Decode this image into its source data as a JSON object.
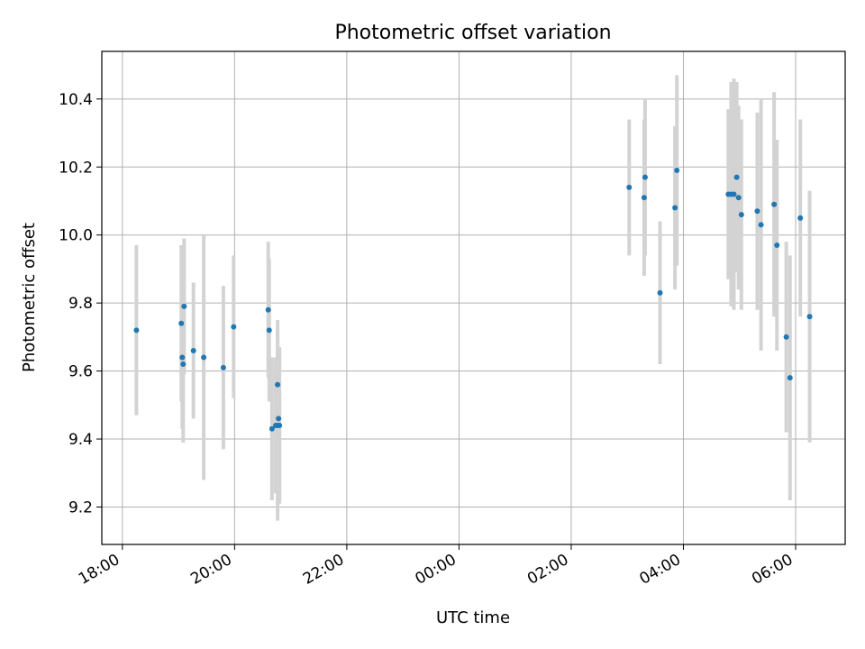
{
  "chart_data": {
    "type": "scatter",
    "title": "Photometric offset variation",
    "xlabel": "UTC time",
    "ylabel": "Photometric offset",
    "x_axis": "time",
    "x_ticks": [
      "18:00",
      "20:00",
      "22:00",
      "00:00",
      "02:00",
      "04:00",
      "06:00"
    ],
    "xlim": [
      "17:38",
      "06:53"
    ],
    "y_ticks": [
      "9.2",
      "9.4",
      "9.6",
      "9.8",
      "10.0",
      "10.2",
      "10.4"
    ],
    "ylim": [
      9.09,
      10.54
    ],
    "grid": true,
    "point_color": "#1f77b4",
    "errorbar_color": "#d3d3d3",
    "points": [
      {
        "t": "18:15",
        "y": 9.72,
        "err": 0.25
      },
      {
        "t": "19:03",
        "y": 9.74,
        "err": 0.23
      },
      {
        "t": "19:04",
        "y": 9.64,
        "err": 0.21
      },
      {
        "t": "19:05",
        "y": 9.62,
        "err": 0.23
      },
      {
        "t": "19:06",
        "y": 9.79,
        "err": 0.2
      },
      {
        "t": "19:16",
        "y": 9.66,
        "err": 0.2
      },
      {
        "t": "19:27",
        "y": 9.64,
        "err": 0.36
      },
      {
        "t": "19:48",
        "y": 9.61,
        "err": 0.24
      },
      {
        "t": "19:59",
        "y": 9.73,
        "err": 0.21
      },
      {
        "t": "20:36",
        "y": 9.78,
        "err": 0.2
      },
      {
        "t": "20:37",
        "y": 9.72,
        "err": 0.21
      },
      {
        "t": "20:40",
        "y": 9.43,
        "err": 0.21
      },
      {
        "t": "20:44",
        "y": 9.44,
        "err": 0.2
      },
      {
        "t": "20:46",
        "y": 9.56,
        "err": 0.19
      },
      {
        "t": "20:46",
        "y": 9.44,
        "err": 0.28
      },
      {
        "t": "20:47",
        "y": 9.46,
        "err": 0.21
      },
      {
        "t": "20:48",
        "y": 9.44,
        "err": 0.23
      },
      {
        "t": "03:02",
        "y": 10.14,
        "err": 0.2
      },
      {
        "t": "03:18",
        "y": 10.11,
        "err": 0.23
      },
      {
        "t": "03:19",
        "y": 10.17,
        "err": 0.23
      },
      {
        "t": "03:35",
        "y": 9.83,
        "err": 0.21
      },
      {
        "t": "03:51",
        "y": 10.08,
        "err": 0.24
      },
      {
        "t": "03:53",
        "y": 10.19,
        "err": 0.28
      },
      {
        "t": "04:48",
        "y": 10.12,
        "err": 0.25
      },
      {
        "t": "04:51",
        "y": 10.12,
        "err": 0.33
      },
      {
        "t": "04:54",
        "y": 10.12,
        "err": 0.34
      },
      {
        "t": "04:57",
        "y": 10.17,
        "err": 0.28
      },
      {
        "t": "04:59",
        "y": 10.11,
        "err": 0.27
      },
      {
        "t": "05:02",
        "y": 10.06,
        "err": 0.28
      },
      {
        "t": "05:19",
        "y": 10.07,
        "err": 0.29
      },
      {
        "t": "05:23",
        "y": 10.03,
        "err": 0.37
      },
      {
        "t": "05:37",
        "y": 10.09,
        "err": 0.33
      },
      {
        "t": "05:40",
        "y": 9.97,
        "err": 0.31
      },
      {
        "t": "05:50",
        "y": 9.7,
        "err": 0.28
      },
      {
        "t": "05:54",
        "y": 9.58,
        "err": 0.36
      },
      {
        "t": "06:05",
        "y": 10.05,
        "err": 0.29
      },
      {
        "t": "06:15",
        "y": 9.76,
        "err": 0.37
      }
    ]
  }
}
